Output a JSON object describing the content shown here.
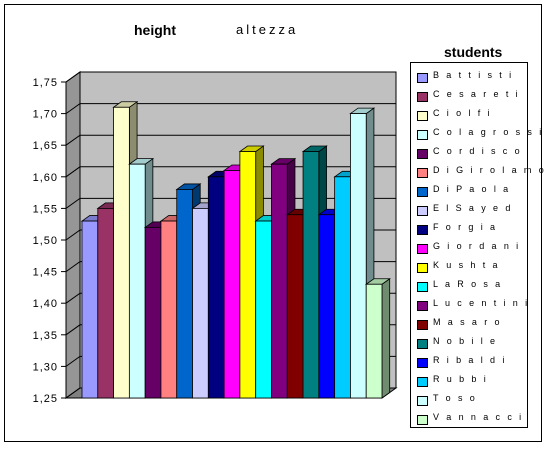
{
  "chart_data": {
    "type": "bar",
    "title": "height",
    "subtitle": "altezza",
    "legend_title": "students",
    "legend_position": "right",
    "grid": true,
    "ylim": [
      1.25,
      1.75
    ],
    "yticks": [
      "1,25",
      "1,30",
      "1,35",
      "1,40",
      "1,45",
      "1,50",
      "1,55",
      "1,60",
      "1,65",
      "1,70",
      "1,75"
    ],
    "series": [
      {
        "name": "B a t t i s t i",
        "value": 1.53,
        "color": "#9999ff"
      },
      {
        "name": "C e s a r e t i",
        "value": 1.55,
        "color": "#993366"
      },
      {
        "name": "C i o l f i",
        "value": 1.71,
        "color": "#ffffcc"
      },
      {
        "name": "C o l a g r o s s i",
        "value": 1.62,
        "color": "#ccffff"
      },
      {
        "name": "C o r d i s c o",
        "value": 1.52,
        "color": "#660066"
      },
      {
        "name": "D i G i r o l a m o",
        "value": 1.53,
        "color": "#ff8080"
      },
      {
        "name": "D i P a o l a",
        "value": 1.58,
        "color": "#0066cc"
      },
      {
        "name": "E l S a y e d",
        "value": 1.55,
        "color": "#ccccff"
      },
      {
        "name": "F o r g i a",
        "value": 1.6,
        "color": "#000080"
      },
      {
        "name": "G i o r d a n i",
        "value": 1.61,
        "color": "#ff00ff"
      },
      {
        "name": "K u s h t a",
        "value": 1.64,
        "color": "#ffff00"
      },
      {
        "name": "L a R o s a",
        "value": 1.53,
        "color": "#00ffff"
      },
      {
        "name": "L u c e n t i n i",
        "value": 1.62,
        "color": "#800080"
      },
      {
        "name": "M a s a r o",
        "value": 1.54,
        "color": "#800000"
      },
      {
        "name": "N o b i l e",
        "value": 1.64,
        "color": "#008080"
      },
      {
        "name": "R i b a l d i",
        "value": 1.54,
        "color": "#0000ff"
      },
      {
        "name": "R u b b i",
        "value": 1.6,
        "color": "#00ccff"
      },
      {
        "name": "T o s o",
        "value": 1.7,
        "color": "#ccffff"
      },
      {
        "name": "V a n n a c c i",
        "value": 1.43,
        "color": "#ccffcc"
      }
    ]
  }
}
